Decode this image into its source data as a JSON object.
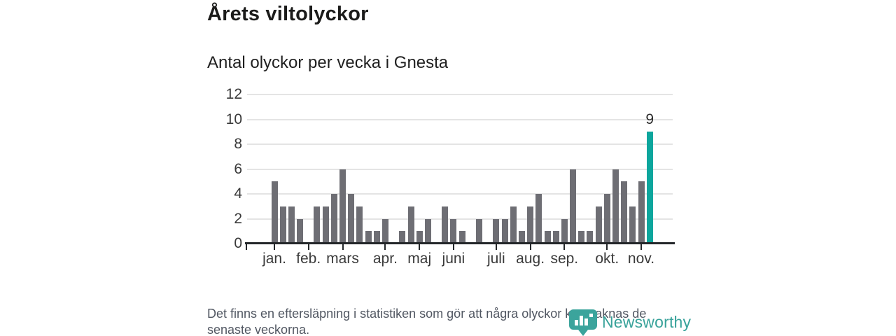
{
  "header": {
    "title": "Årets viltolyckor",
    "subtitle": "Antal olyckor per vecka i Gnesta"
  },
  "footer": {
    "lines": [
      "Det finns en eftersläpning i statistiken som gör att några olyckor kan saknas de",
      "senaste veckorna."
    ]
  },
  "logo": {
    "text": "Newsworthy",
    "icon": "newsworthy-bubble-barchart-icon",
    "color": "#3ba49c"
  },
  "chart_data": {
    "type": "bar",
    "title": "Årets viltolyckor",
    "subtitle": "Antal olyckor per vecka i Gnesta",
    "x_description": "weeks 1-45 of the year",
    "values": [
      5,
      3,
      3,
      2,
      0,
      3,
      3,
      4,
      6,
      4,
      3,
      1,
      1,
      2,
      0,
      1,
      3,
      1,
      2,
      0,
      3,
      2,
      1,
      0,
      2,
      0,
      2,
      2,
      3,
      1,
      3,
      4,
      1,
      1,
      2,
      6,
      1,
      1,
      3,
      4,
      6,
      5,
      3,
      5,
      9
    ],
    "month_ticks": [
      {
        "label": "jan.",
        "week": 1
      },
      {
        "label": "feb.",
        "week": 5
      },
      {
        "label": "mars",
        "week": 9
      },
      {
        "label": "apr.",
        "week": 14
      },
      {
        "label": "maj",
        "week": 18
      },
      {
        "label": "juni",
        "week": 22
      },
      {
        "label": "juli",
        "week": 27
      },
      {
        "label": "aug.",
        "week": 31
      },
      {
        "label": "sep.",
        "week": 35
      },
      {
        "label": "okt.",
        "week": 40
      },
      {
        "label": "nov.",
        "week": 44
      }
    ],
    "y_ticks": [
      0,
      2,
      4,
      6,
      8,
      10,
      12
    ],
    "ylim": [
      0,
      12
    ],
    "grid": true,
    "legend": false,
    "bar_color": "#6e6e74",
    "highlight_last": true,
    "highlight_color": "#0ca69d",
    "highlight_value_label": "9"
  }
}
